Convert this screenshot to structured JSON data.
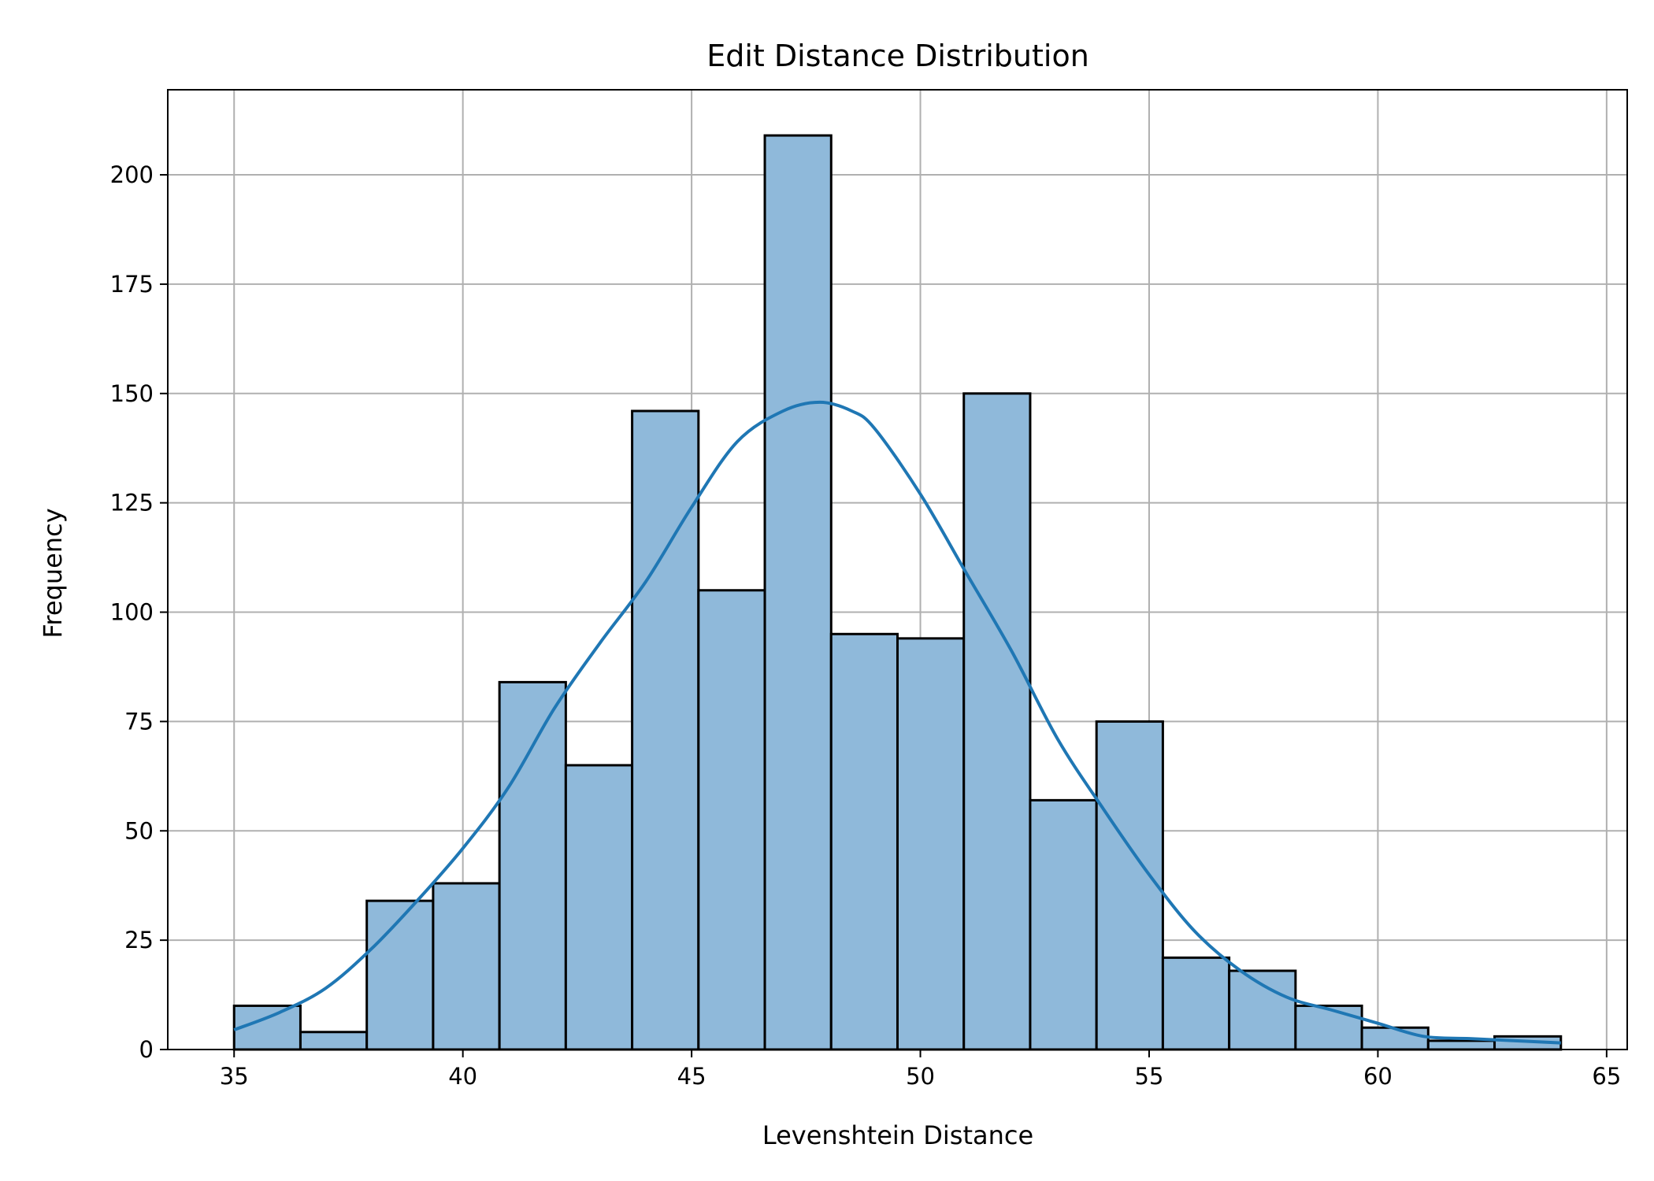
{
  "chart_data": {
    "type": "bar",
    "title": "Edit Distance Distribution",
    "xlabel": "Levenshtein Distance",
    "ylabel": "Frequency",
    "xlim": [
      33.55,
      65.45
    ],
    "ylim": [
      0,
      219.45
    ],
    "xticks": [
      35,
      40,
      45,
      50,
      55,
      60,
      65
    ],
    "yticks": [
      0,
      25,
      50,
      75,
      100,
      125,
      150,
      175,
      200
    ],
    "grid": true,
    "bins": {
      "edges": [
        35,
        36.45,
        37.9,
        39.35,
        40.8,
        42.25,
        43.7,
        45.15,
        46.6,
        48.05,
        49.5,
        50.95,
        52.4,
        53.85,
        55.3,
        56.75,
        58.2,
        59.65,
        61.1,
        62.55,
        64
      ],
      "counts": [
        10,
        4,
        34,
        38,
        84,
        65,
        146,
        105,
        209,
        95,
        94,
        150,
        57,
        75,
        21,
        18,
        10,
        5,
        2,
        3
      ]
    },
    "kde": {
      "x": [
        35,
        36,
        37,
        38,
        39,
        40,
        41,
        42,
        43,
        44,
        45,
        46,
        47,
        47.8,
        48.5,
        49,
        50,
        51,
        52,
        53,
        54,
        55,
        56,
        57,
        58,
        59,
        60,
        61,
        62,
        63,
        64
      ],
      "y": [
        4.5,
        8.5,
        14,
        23,
        34,
        46,
        60,
        78,
        93,
        107,
        124,
        139,
        146,
        148,
        146,
        142,
        127,
        109,
        91,
        71,
        55,
        40,
        27,
        18,
        12,
        9,
        6,
        3,
        2.5,
        2,
        1.5
      ]
    },
    "colors": {
      "bar_fill": "#8fb9da",
      "bar_edge": "#000000",
      "kde_line": "#1f77b4",
      "grid": "#b0b0b0"
    }
  }
}
